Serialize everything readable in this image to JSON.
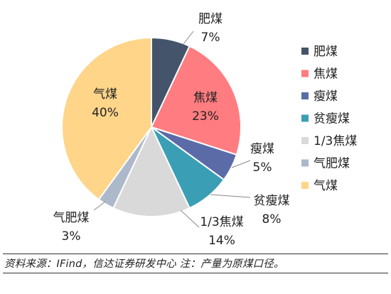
{
  "chart_data": {
    "type": "pie",
    "categories": [
      "肥煤",
      "焦煤",
      "瘦煤",
      "贫瘦煤",
      "1/3焦煤",
      "气肥煤",
      "气煤"
    ],
    "values": [
      7,
      23,
      5,
      8,
      14,
      3,
      40
    ],
    "value_labels": [
      "7%",
      "23%",
      "5%",
      "8%",
      "14%",
      "3%",
      "40%"
    ],
    "colors": [
      "#44546A",
      "#FF7C80",
      "#5B6BA8",
      "#3A9FB4",
      "#D9D9D9",
      "#ADB9CA",
      "#FFD58A"
    ],
    "legend": {
      "position": "right",
      "items": [
        "肥煤",
        "焦煤",
        "瘦煤",
        "贫瘦煤",
        "1/3焦煤",
        "气肥煤",
        "气煤"
      ]
    },
    "start_angle_deg": 0,
    "direction": "clockwise"
  },
  "footer": {
    "source": "资料来源：IFind，信达证券研发中心 注：产量为原煤口径。"
  }
}
